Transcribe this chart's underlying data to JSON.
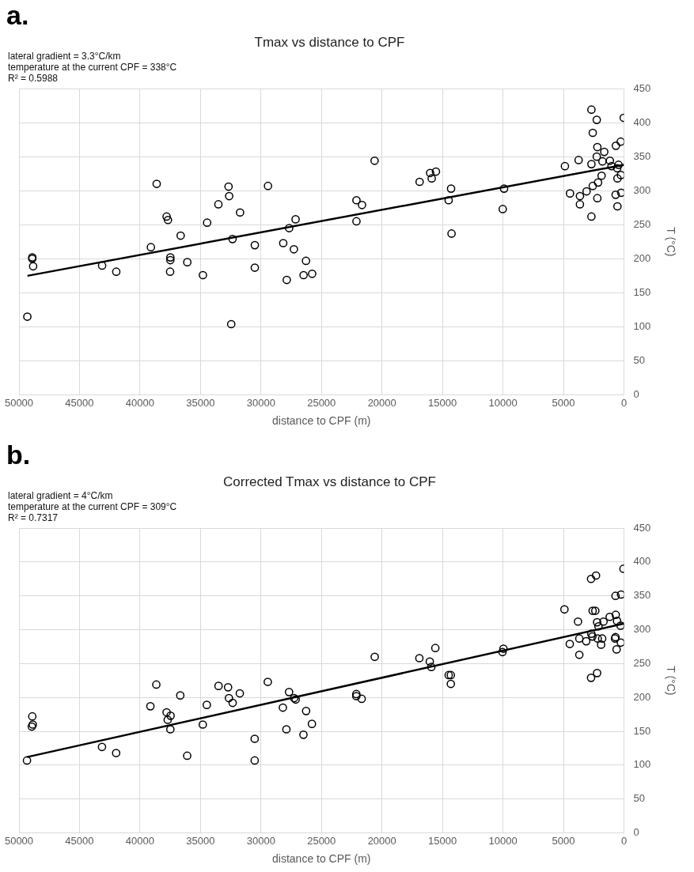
{
  "chart_data": [
    {
      "type": "scatter",
      "title": "Tmax vs distance to CPF",
      "xlabel": "distance to CPF (m)",
      "ylabel": "T (°C)",
      "annotations": [
        "a.",
        "lateral gradient = 3.3°C/km",
        "temperature at the current CPF = 338°C",
        "R² = 0.5988"
      ],
      "xlim": [
        50000,
        0
      ],
      "xticks": [
        50000,
        45000,
        40000,
        35000,
        30000,
        25000,
        20000,
        15000,
        10000,
        5000,
        0
      ],
      "ylim": [
        0,
        450
      ],
      "yticks": [
        0,
        50,
        100,
        150,
        200,
        250,
        300,
        350,
        400,
        450
      ],
      "grid": true,
      "legend": false,
      "marker": "circle",
      "series": [
        {
          "color": "#000000",
          "x": [
            48900,
            48900,
            48830,
            49310,
            43130,
            41960,
            38620,
            39100,
            37800,
            37690,
            37490,
            37490,
            37510,
            36640,
            36090,
            34800,
            34450,
            33520,
            32680,
            32630,
            32350,
            32460,
            31730,
            30510,
            30510,
            29420,
            28160,
            27870,
            27670,
            27280,
            27140,
            26280,
            26480,
            25770,
            22110,
            21650,
            22110,
            20610,
            16890,
            16020,
            15890,
            15540,
            14290,
            14490,
            14250,
            9910,
            10020,
            4880,
            4460,
            3750,
            3640,
            3640,
            3090,
            2690,
            2690,
            2690,
            2580,
            2580,
            2250,
            2200,
            2250,
            2200,
            2140,
            1850,
            1780,
            1630,
            1160,
            1030,
            670,
            690,
            560,
            540,
            540,
            270,
            250,
            230,
            20,
            450
          ],
          "values": [
            200,
            202,
            189,
            115,
            190,
            181,
            310,
            217,
            262,
            257,
            202,
            198,
            181,
            234,
            195,
            176,
            253,
            280,
            306,
            292,
            229,
            104,
            268,
            220,
            187,
            307,
            223,
            169,
            245,
            214,
            258,
            197,
            176,
            178,
            286,
            279,
            255,
            344,
            313,
            326,
            318,
            328,
            303,
            286,
            237,
            303,
            273,
            336,
            296,
            345,
            292,
            280,
            299,
            419,
            339,
            262,
            307,
            385,
            404,
            364,
            350,
            289,
            312,
            322,
            343,
            357,
            344,
            336,
            366,
            294,
            333,
            318,
            277,
            372,
            323,
            297,
            407,
            338
          ]
        },
        {
          "type": "line",
          "marker": "none",
          "color": "#000000",
          "x": [
            49300,
            0
          ],
          "values": [
            175,
            338
          ]
        }
      ]
    },
    {
      "type": "scatter",
      "title": "Corrected Tmax vs distance to CPF",
      "xlabel": "distance to CPF (m)",
      "ylabel": "T (°C)",
      "annotations": [
        "b.",
        "lateral gradient = 4°C/km",
        "temperature at the current CPF = 309°C",
        "R² = 0.7317"
      ],
      "xlim": [
        50000,
        0
      ],
      "xticks": [
        50000,
        45000,
        40000,
        35000,
        30000,
        25000,
        20000,
        15000,
        10000,
        5000,
        0
      ],
      "ylim": [
        0,
        450
      ],
      "yticks": [
        0,
        50,
        100,
        150,
        200,
        250,
        300,
        350,
        400,
        450
      ],
      "grid": true,
      "legend": false,
      "marker": "circle",
      "series": [
        {
          "color": "#000000",
          "x": [
            49340,
            48900,
            48860,
            48940,
            43140,
            41970,
            38650,
            39140,
            37800,
            37470,
            37710,
            37490,
            36670,
            36100,
            34810,
            34480,
            33510,
            32720,
            32650,
            32340,
            31750,
            30520,
            30520,
            29440,
            28190,
            27900,
            27680,
            27260,
            27130,
            26270,
            26490,
            25790,
            22120,
            22120,
            21680,
            20600,
            16910,
            16050,
            15920,
            15590,
            14490,
            14310,
            14310,
            9960,
            10040,
            4920,
            4480,
            3800,
            3690,
            3690,
            3120,
            2720,
            2310,
            2590,
            2370,
            2700,
            2610,
            2720,
            2220,
            2220,
            2110,
            2170,
            1800,
            1890,
            1690,
            1180,
            680,
            700,
            570,
            700,
            740,
            610,
            240,
            260,
            280,
            40
          ],
          "values": [
            107,
            172,
            160,
            157,
            127,
            118,
            219,
            187,
            178,
            173,
            167,
            153,
            203,
            114,
            160,
            189,
            217,
            215,
            199,
            192,
            206,
            139,
            107,
            223,
            185,
            153,
            208,
            199,
            197,
            180,
            145,
            161,
            205,
            202,
            198,
            260,
            258,
            253,
            245,
            273,
            233,
            233,
            220,
            272,
            267,
            330,
            279,
            312,
            287,
            263,
            283,
            375,
            380,
            328,
            328,
            294,
            290,
            229,
            236,
            311,
            305,
            287,
            287,
            278,
            312,
            319,
            322,
            350,
            313,
            289,
            287,
            271,
            352,
            281,
            306,
            390
          ]
        },
        {
          "type": "line",
          "marker": "none",
          "color": "#000000",
          "x": [
            49340,
            0
          ],
          "values": [
            112,
            309
          ]
        }
      ]
    }
  ]
}
